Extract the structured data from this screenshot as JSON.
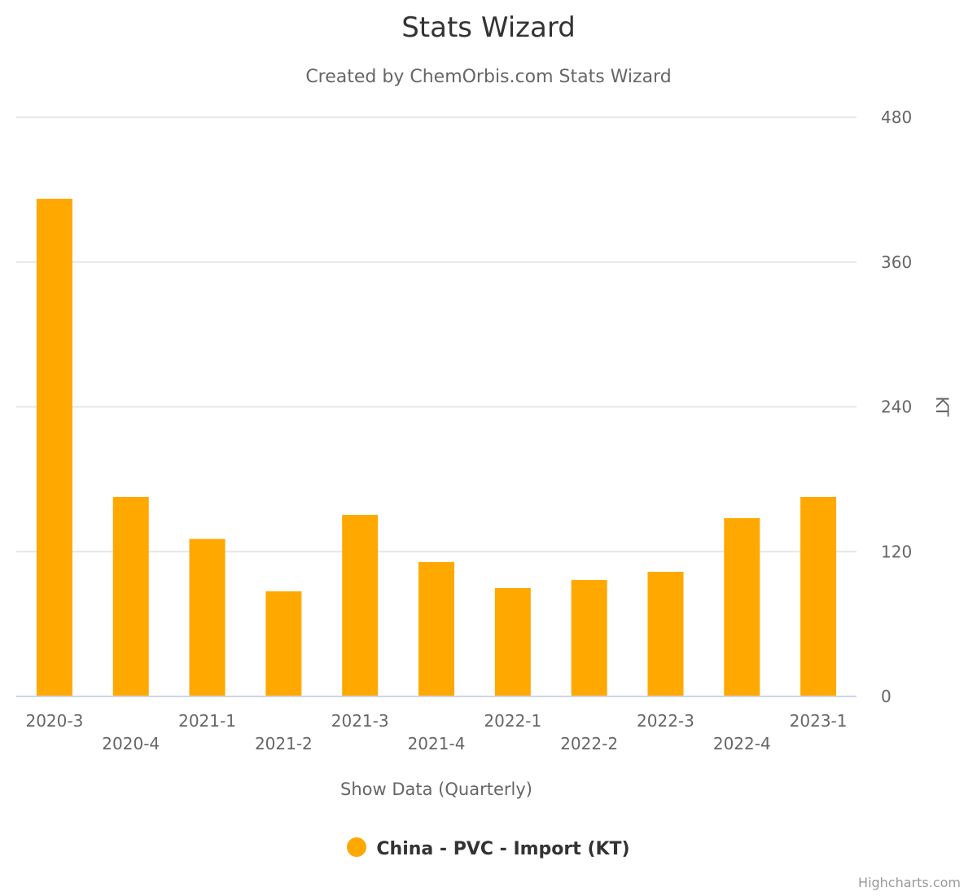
{
  "header": {
    "title": "Stats Wizard",
    "subtitle": "Created by ChemOrbis.com Stats Wizard"
  },
  "x_axis": {
    "title": "Show Data (Quarterly)"
  },
  "y_axis": {
    "title": "KT",
    "ticks": [
      "0",
      "120",
      "240",
      "360",
      "480"
    ]
  },
  "legend": {
    "items": [
      {
        "label": "China - PVC - Import (KT)",
        "color": "#FFA800"
      }
    ]
  },
  "credits": {
    "label": "Highcharts.com"
  },
  "colors": {
    "series": "#FFA800",
    "grid": "#e6e6e6",
    "axis_line": "#ccd6eb",
    "text": "#666666"
  },
  "chart_data": {
    "type": "bar",
    "title": "Stats Wizard",
    "subtitle": "Created by ChemOrbis.com Stats Wizard",
    "xlabel": "Show Data (Quarterly)",
    "ylabel": "KT",
    "ylim": [
      0,
      480
    ],
    "yticks": [
      0,
      120,
      240,
      360,
      480
    ],
    "y_axis_position": "right",
    "grid": true,
    "legend_position": "bottom",
    "categories": [
      "2020-3",
      "2020-4",
      "2021-1",
      "2021-2",
      "2021-3",
      "2021-4",
      "2022-1",
      "2022-2",
      "2022-3",
      "2022-4",
      "2023-1"
    ],
    "series": [
      {
        "name": "China - PVC - Import (KT)",
        "color": "#FFA800",
        "values": [
          412.5,
          165.4,
          130.5,
          87.1,
          150.5,
          111.4,
          89.8,
          96.5,
          103.3,
          147.8,
          165.4
        ]
      }
    ]
  }
}
